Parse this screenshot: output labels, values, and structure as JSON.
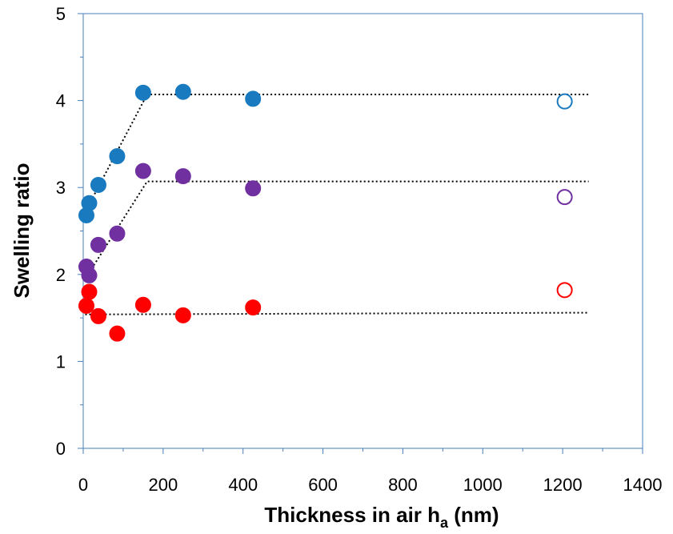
{
  "chart_data": {
    "type": "scatter",
    "title": "",
    "xlabel": "Thickness in air h",
    "xlabel_sub": "a",
    "xlabel_unit": " (nm)",
    "ylabel": "Swelling ratio",
    "xlim": [
      0,
      1400
    ],
    "ylim": [
      0,
      5
    ],
    "xticks": [
      0,
      200,
      400,
      600,
      800,
      1000,
      1200,
      1400
    ],
    "yticks": [
      0,
      1,
      2,
      3,
      4,
      5
    ],
    "grid": false,
    "series": [
      {
        "color": "#1a7abf",
        "points": [
          [
            8,
            2.68
          ],
          [
            15,
            2.82
          ],
          [
            38,
            3.03
          ],
          [
            85,
            3.36
          ],
          [
            150,
            4.09
          ],
          [
            250,
            4.1
          ],
          [
            425,
            4.02
          ]
        ],
        "open_points": [
          [
            1205,
            3.99
          ]
        ],
        "trend": [
          [
            5,
            2.72
          ],
          [
            160,
            4.07
          ],
          [
            1270,
            4.07
          ]
        ]
      },
      {
        "color": "#7030a0",
        "points": [
          [
            8,
            2.09
          ],
          [
            15,
            1.99
          ],
          [
            38,
            2.34
          ],
          [
            85,
            2.47
          ],
          [
            150,
            3.19
          ],
          [
            250,
            3.13
          ],
          [
            425,
            2.99
          ]
        ],
        "open_points": [
          [
            1205,
            2.89
          ]
        ],
        "trend": [
          [
            5,
            1.95
          ],
          [
            160,
            3.07
          ],
          [
            1265,
            3.07
          ]
        ]
      },
      {
        "color": "#ff0000",
        "points": [
          [
            8,
            1.64
          ],
          [
            15,
            1.8
          ],
          [
            38,
            1.52
          ],
          [
            85,
            1.32
          ],
          [
            150,
            1.65
          ],
          [
            250,
            1.53
          ],
          [
            425,
            1.62
          ]
        ],
        "open_points": [
          [
            1205,
            1.82
          ]
        ],
        "trend": [
          [
            5,
            1.54
          ],
          [
            1265,
            1.56
          ]
        ]
      }
    ]
  }
}
